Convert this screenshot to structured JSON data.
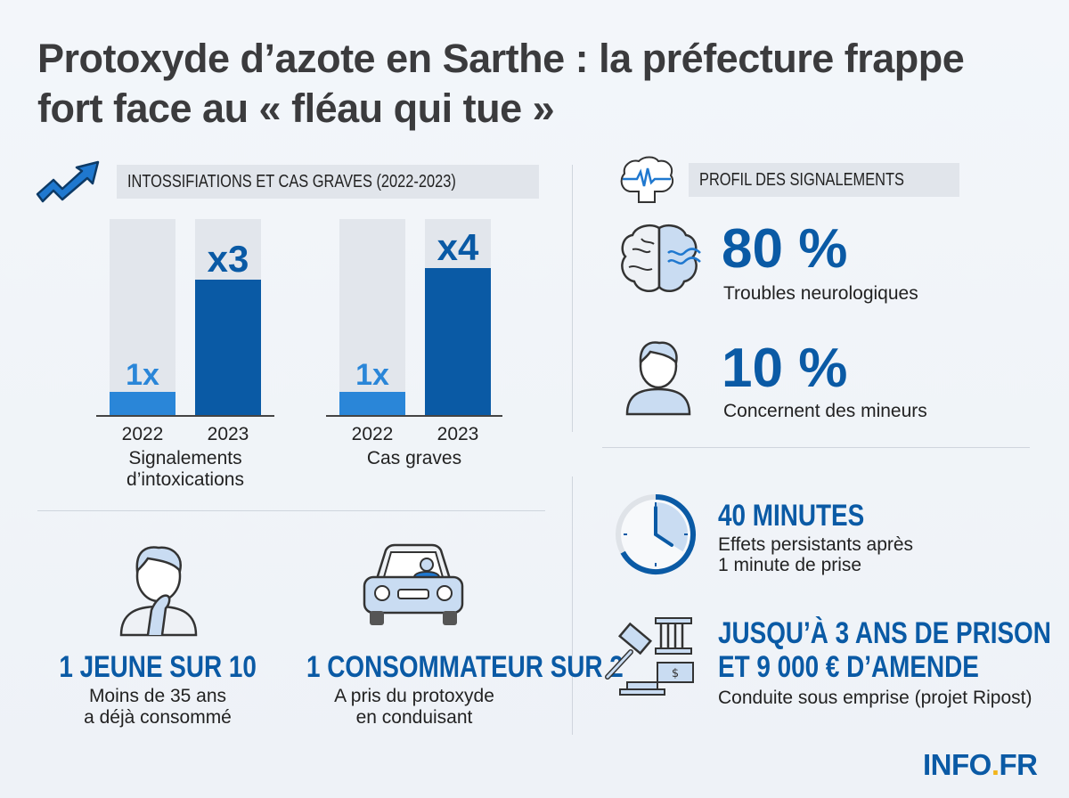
{
  "title": "Protoxyde d’azote en Sarthe : la préfecture frappe fort face au « fléau qui tue »",
  "left_section": {
    "header": "INTOSSIFIATIONS ET CAS GRAVES (2022-2023)",
    "icon": "trend-up-arrow-icon"
  },
  "chart_data": [
    {
      "type": "bar",
      "categories": [
        "2022",
        "2023"
      ],
      "xlabel": "Signalements d’intoxications",
      "data_labels": [
        "1x",
        "x3"
      ],
      "values": [
        1,
        3
      ],
      "fill_percent": [
        12,
        69
      ],
      "colors": [
        "#2a86d8",
        "#0a5aa5"
      ]
    },
    {
      "type": "bar",
      "categories": [
        "2022",
        "2023"
      ],
      "xlabel": "Cas graves",
      "data_labels": [
        "1x",
        "x4"
      ],
      "values": [
        1,
        4
      ],
      "fill_percent": [
        12,
        75
      ],
      "colors": [
        "#2a86d8",
        "#0a5aa5"
      ]
    }
  ],
  "profile": {
    "header": "PROFIL DES SIGNALEMENTS",
    "icon": "brain-pulse-icon",
    "items": [
      {
        "value": "80 %",
        "label": "Troubles neurologiques",
        "icon": "brain-icon"
      },
      {
        "value": "10 %",
        "label": "Concernent des mineurs",
        "icon": "child-icon"
      }
    ]
  },
  "bottom_left": [
    {
      "headline": "1 JEUNE SUR 10",
      "line1": "Moins de 35 ans",
      "line2": "a déjà consommé",
      "icon": "person-inhaling-icon"
    },
    {
      "headline": "1 CONSOMMATEUR SUR 2",
      "line1": "A pris du protoxyde",
      "line2": "en conduisant",
      "icon": "car-driver-icon"
    }
  ],
  "bottom_right": [
    {
      "headline": "40 MINUTES",
      "line1": "Effets persistants après",
      "line2": "1 minute de prise",
      "icon": "clock-icon",
      "clock_fill_fraction": 0.67
    },
    {
      "headline1": "JUSQU’À 3 ANS DE PRISON",
      "headline2": "ET 9 000 € D’AMENDE",
      "line1": "Conduite sous emprise (projet Ripost)",
      "icon": "gavel-prison-money-icon"
    }
  ],
  "brand": {
    "text1": "INFO",
    "dot": ".",
    "text2": "FR",
    "color": "#0a5aa5",
    "dot_color": "#f2b51c"
  },
  "colors": {
    "accent": "#0a5aa5",
    "accent_light": "#2a86d8",
    "track": "#e2e6ec"
  }
}
